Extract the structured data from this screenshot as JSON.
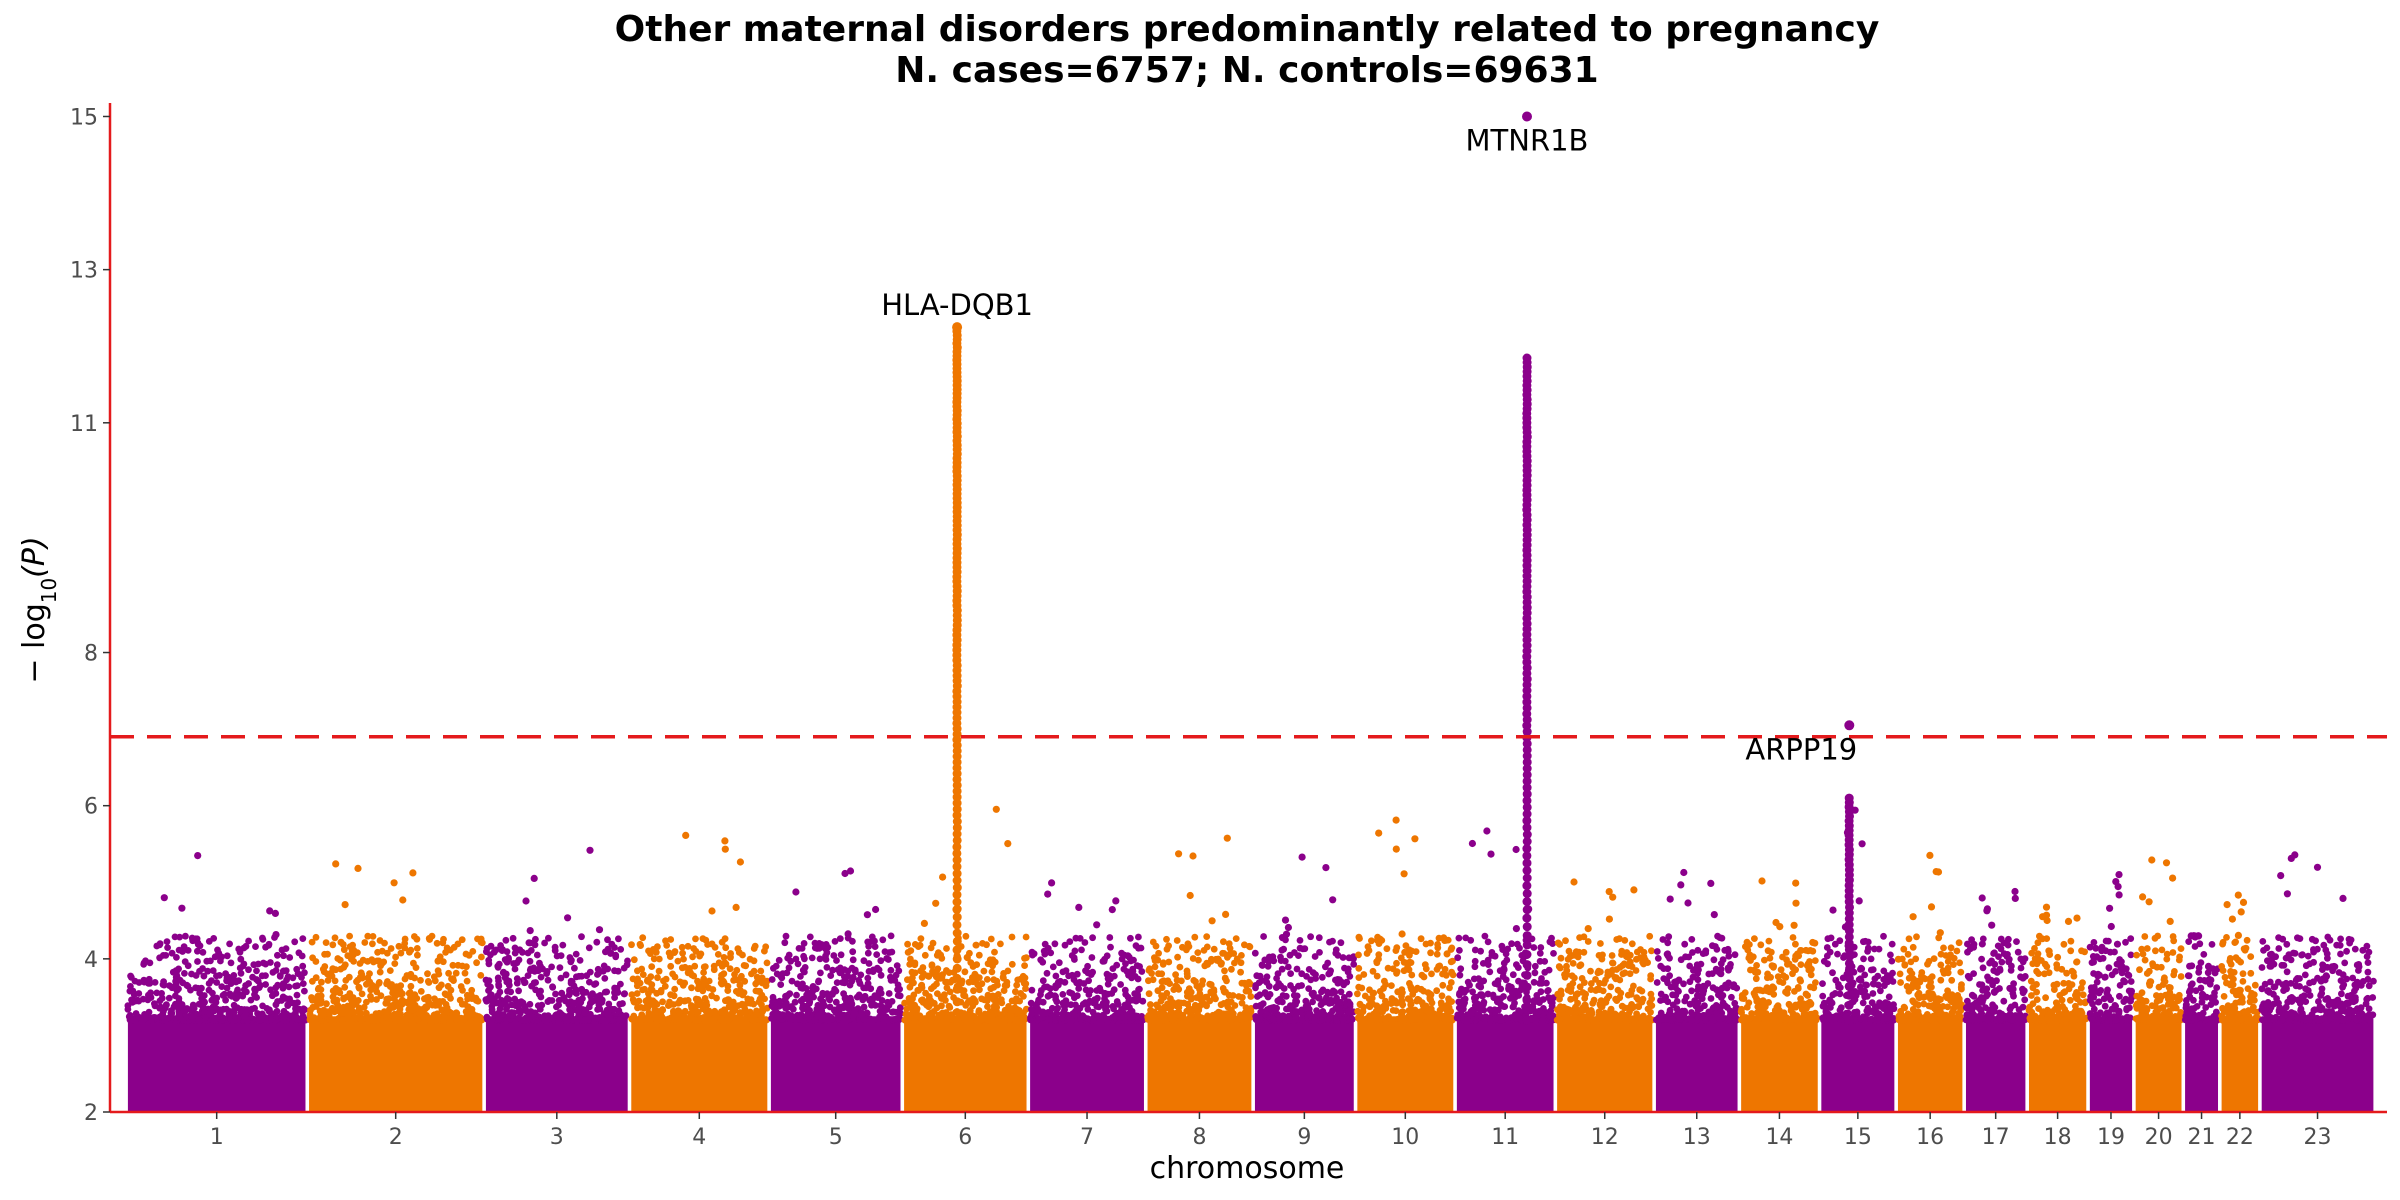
{
  "chart_data": {
    "type": "scatter",
    "title": "Other maternal disorders predominantly related to pregnancy",
    "subtitle": "N. cases=6757; N. controls=69631",
    "xlabel": "chromosome",
    "ylabel_prefix": "− log",
    "ylabel_sub": "10",
    "ylabel_suffix": "(P)",
    "ylim": [
      2,
      15.15
    ],
    "y_ticks": [
      2,
      4,
      6,
      8,
      11,
      13,
      15
    ],
    "threshold": 6.9,
    "colors": {
      "odd_chromosome": "#8B008B",
      "even_chromosome": "#EE7600",
      "threshold": "#E41A1C",
      "axis": "#E41A1C"
    },
    "chromosomes": [
      {
        "label": "1",
        "start": 0,
        "end": 248,
        "max": 5.6
      },
      {
        "label": "2",
        "start": 253,
        "end": 495,
        "max": 5.3
      },
      {
        "label": "3",
        "start": 500,
        "end": 698,
        "max": 5.6
      },
      {
        "label": "4",
        "start": 703,
        "end": 893,
        "max": 5.8
      },
      {
        "label": "5",
        "start": 898,
        "end": 1079,
        "max": 5.3
      },
      {
        "label": "6",
        "start": 1084,
        "end": 1255,
        "max": 12.25
      },
      {
        "label": "7",
        "start": 1260,
        "end": 1419,
        "max": 5.0
      },
      {
        "label": "8",
        "start": 1424,
        "end": 1569,
        "max": 5.75
      },
      {
        "label": "9",
        "start": 1574,
        "end": 1712,
        "max": 5.4
      },
      {
        "label": "10",
        "start": 1717,
        "end": 1851,
        "max": 5.9
      },
      {
        "label": "11",
        "start": 1856,
        "end": 1991,
        "max": 15.0
      },
      {
        "label": "12",
        "start": 1996,
        "end": 2129,
        "max": 5.7
      },
      {
        "label": "13",
        "start": 2134,
        "end": 2248,
        "max": 5.35
      },
      {
        "label": "14",
        "start": 2253,
        "end": 2360,
        "max": 5.45
      },
      {
        "label": "15",
        "start": 2365,
        "end": 2467,
        "max": 7.05
      },
      {
        "label": "16",
        "start": 2472,
        "end": 2562,
        "max": 5.4
      },
      {
        "label": "17",
        "start": 2567,
        "end": 2650,
        "max": 5.2
      },
      {
        "label": "18",
        "start": 2655,
        "end": 2735,
        "max": 4.7
      },
      {
        "label": "19",
        "start": 2740,
        "end": 2799,
        "max": 5.2
      },
      {
        "label": "20",
        "start": 2804,
        "end": 2868,
        "max": 5.3
      },
      {
        "label": "21",
        "start": 2873,
        "end": 2919,
        "max": 4.3
      },
      {
        "label": "22",
        "start": 2924,
        "end": 2975,
        "max": 5.2
      },
      {
        "label": "23",
        "start": 2980,
        "end": 3136,
        "max": 5.45
      }
    ],
    "x_range": [
      -25,
      3155
    ],
    "peaks": [
      {
        "chrom": "6",
        "pos": 1158,
        "top": 12.25,
        "label": "HLA-DQB1"
      },
      {
        "chrom": "11",
        "pos": 1954,
        "top": 15.0,
        "label": "MTNR1B"
      },
      {
        "chrom": "15",
        "pos": 2404,
        "top": 7.05,
        "label": "ARPP19"
      }
    ]
  }
}
